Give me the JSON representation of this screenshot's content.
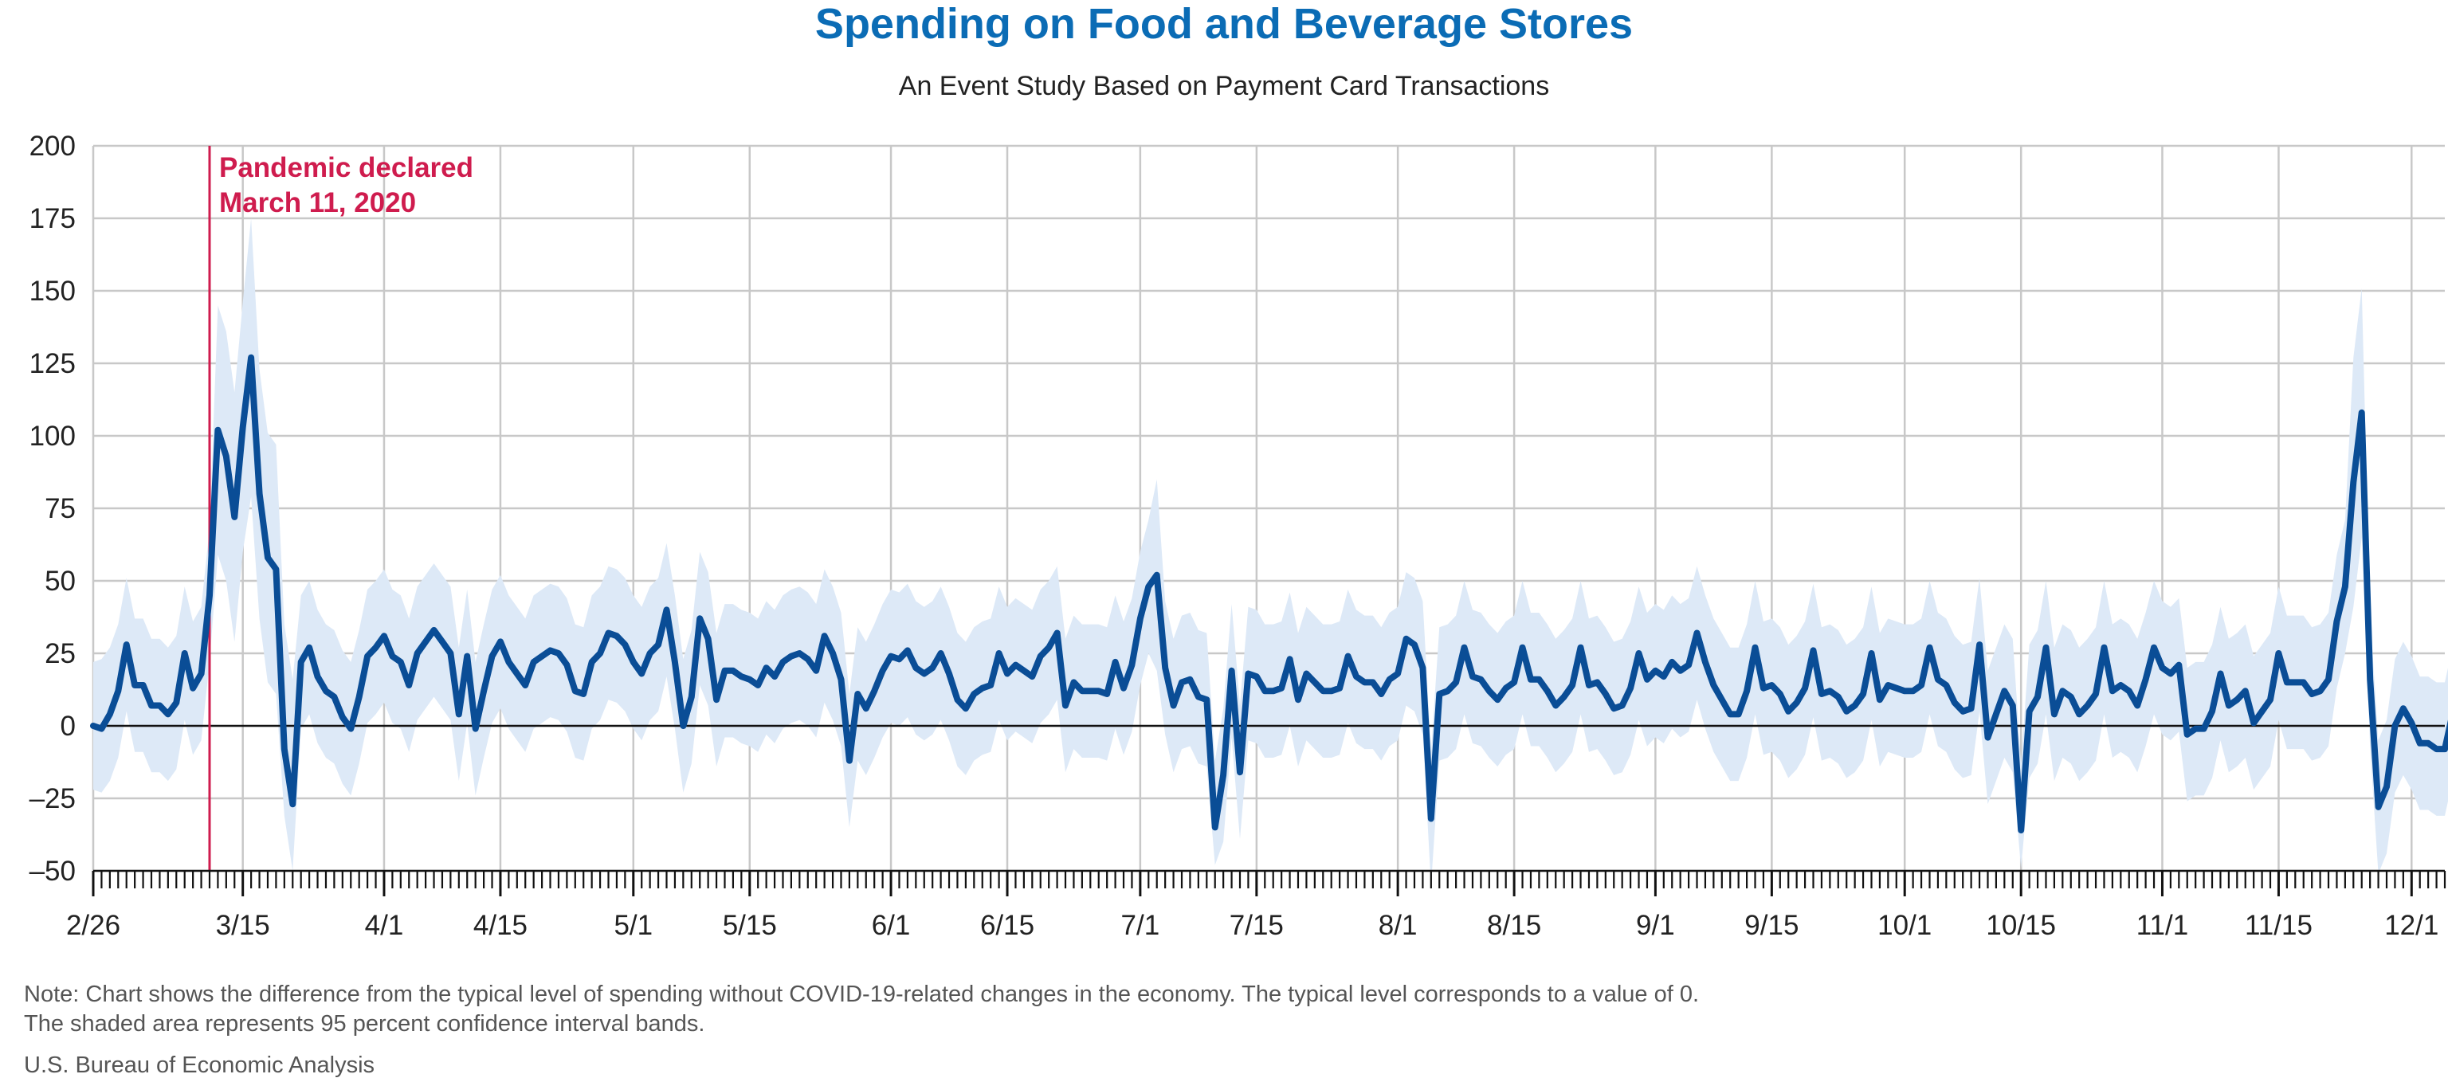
{
  "title": "Spending on Food and Beverage Stores",
  "subtitle": "An Event Study Based on Payment Card Transactions",
  "note_line1": "Note: Chart shows the difference from the typical level of spending without COVID-19-related changes in the economy. The typical level corresponds to a value of 0.",
  "note_line2": "The shaded area represents 95 percent confidence interval bands.",
  "source": "U.S. Bureau of Economic Analysis",
  "colors": {
    "title": "#0b6cb5",
    "line": "#0a4d96",
    "band": "#dde9f7",
    "event": "#cf1c4e",
    "grid": "#c8c8c8"
  },
  "chart_data": {
    "type": "line",
    "title": "Spending on Food and Beverage Stores",
    "subtitle": "An Event Study Based on Payment Card Transactions",
    "xlabel": "",
    "ylabel": "",
    "ylim": [
      -50,
      200
    ],
    "yticks": [
      200,
      175,
      150,
      125,
      100,
      75,
      50,
      25,
      0,
      -25,
      -50
    ],
    "xtick_labels": [
      {
        "label": "2/26",
        "date": "2020-02-26"
      },
      {
        "label": "3/15",
        "date": "2020-03-15"
      },
      {
        "label": "4/1",
        "date": "2020-04-01"
      },
      {
        "label": "4/15",
        "date": "2020-04-15"
      },
      {
        "label": "5/1",
        "date": "2020-05-01"
      },
      {
        "label": "5/15",
        "date": "2020-05-15"
      },
      {
        "label": "6/1",
        "date": "2020-06-01"
      },
      {
        "label": "6/15",
        "date": "2020-06-15"
      },
      {
        "label": "7/1",
        "date": "2020-07-01"
      },
      {
        "label": "7/15",
        "date": "2020-07-15"
      },
      {
        "label": "8/1",
        "date": "2020-08-01"
      },
      {
        "label": "8/15",
        "date": "2020-08-15"
      },
      {
        "label": "9/1",
        "date": "2020-09-01"
      },
      {
        "label": "9/15",
        "date": "2020-09-15"
      },
      {
        "label": "10/1",
        "date": "2020-10-01"
      },
      {
        "label": "10/15",
        "date": "2020-10-15"
      },
      {
        "label": "11/1",
        "date": "2020-11-01"
      },
      {
        "label": "11/15",
        "date": "2020-11-15"
      },
      {
        "label": "12/1",
        "date": "2020-12-01"
      }
    ],
    "x_start": "2020-02-26",
    "x_end": "2020-12-05",
    "grid": true,
    "event": {
      "date": "2020-03-11",
      "label_line1": "Pandemic declared",
      "label_line2": "March 11, 2020"
    },
    "series": [
      {
        "kind": "estimate",
        "values": [
          0,
          -1,
          4,
          12,
          28,
          14,
          14,
          7,
          7,
          4,
          8,
          25,
          13,
          18,
          45,
          102,
          93,
          72,
          103,
          127,
          80,
          58,
          54,
          -8,
          -27,
          22,
          27,
          17,
          12,
          10,
          3,
          -1,
          10,
          24,
          27,
          31,
          24,
          22,
          14,
          25,
          29,
          33,
          29,
          25,
          4,
          24,
          -1,
          12,
          24,
          29,
          22,
          18,
          14,
          22,
          24,
          26,
          25,
          21,
          12,
          11,
          22,
          25,
          32,
          31,
          28,
          22,
          18,
          25,
          28,
          40,
          22,
          0,
          10,
          37,
          30,
          9,
          19,
          19,
          17,
          16,
          14,
          20,
          17,
          22,
          24,
          25,
          23,
          19,
          31,
          25,
          16,
          -12,
          11,
          6,
          12,
          19,
          24,
          23,
          26,
          20,
          18,
          20,
          25,
          18,
          9,
          6,
          11,
          13,
          14,
          25,
          18,
          21,
          19,
          17,
          24,
          27,
          32,
          7,
          15,
          12,
          12,
          12,
          11,
          22,
          13,
          21,
          37,
          48,
          52,
          20,
          7,
          15,
          16,
          10,
          9,
          -35,
          -17,
          19,
          -16,
          18,
          17,
          12,
          12,
          13,
          23,
          9,
          18,
          15,
          12,
          12,
          13,
          24,
          17,
          15,
          15,
          11,
          16,
          18,
          30,
          28,
          20,
          -32,
          11,
          12,
          15,
          27,
          17,
          16,
          12,
          9,
          13,
          15,
          27,
          16,
          16,
          12,
          7,
          10,
          14,
          27,
          14,
          15,
          11,
          6,
          7,
          13,
          25,
          16,
          19,
          17,
          22,
          19,
          21,
          32,
          22,
          14,
          9,
          4,
          4,
          12,
          27,
          13,
          14,
          11,
          5,
          8,
          13,
          26,
          11,
          12,
          10,
          5,
          7,
          11,
          25,
          9,
          14,
          13,
          12,
          12,
          14,
          27,
          16,
          14,
          8,
          5,
          6,
          28,
          -4,
          4,
          12,
          7,
          -36,
          5,
          10,
          27,
          4,
          12,
          10,
          4,
          7,
          11,
          27,
          12,
          14,
          12,
          7,
          16,
          27,
          20,
          18,
          21,
          -3,
          -1,
          -1,
          5,
          18,
          7,
          9,
          12,
          1,
          5,
          9,
          25,
          15,
          15,
          15,
          11,
          12,
          16,
          36,
          48,
          84,
          108,
          16,
          -28,
          -21,
          0,
          6,
          1,
          -6,
          -6,
          -8,
          -8,
          5
        ]
      },
      {
        "kind": "ci_upper",
        "values": [
          22,
          23,
          27,
          35,
          51,
          37,
          37,
          30,
          30,
          27,
          31,
          48,
          36,
          41,
          68,
          145,
          136,
          115,
          146,
          175,
          123,
          101,
          97,
          35,
          16,
          45,
          50,
          40,
          35,
          33,
          26,
          22,
          33,
          47,
          50,
          54,
          47,
          45,
          37,
          48,
          52,
          56,
          52,
          48,
          27,
          47,
          22,
          35,
          47,
          52,
          45,
          41,
          37,
          45,
          47,
          49,
          48,
          44,
          35,
          34,
          45,
          48,
          55,
          54,
          51,
          45,
          41,
          48,
          51,
          63,
          45,
          23,
          33,
          60,
          53,
          32,
          42,
          42,
          40,
          39,
          37,
          43,
          40,
          45,
          47,
          48,
          46,
          42,
          54,
          48,
          39,
          11,
          34,
          29,
          35,
          42,
          47,
          46,
          49,
          43,
          41,
          43,
          48,
          41,
          32,
          29,
          34,
          36,
          37,
          48,
          41,
          44,
          42,
          40,
          47,
          50,
          55,
          30,
          38,
          35,
          35,
          35,
          34,
          45,
          36,
          44,
          60,
          71,
          85,
          43,
          30,
          38,
          39,
          33,
          32,
          -12,
          6,
          42,
          7,
          41,
          40,
          35,
          35,
          36,
          46,
          32,
          41,
          38,
          35,
          35,
          36,
          47,
          40,
          38,
          38,
          34,
          39,
          41,
          53,
          51,
          43,
          -9,
          34,
          35,
          38,
          50,
          40,
          39,
          35,
          32,
          36,
          38,
          50,
          39,
          39,
          35,
          30,
          33,
          37,
          50,
          37,
          38,
          34,
          29,
          30,
          36,
          48,
          39,
          42,
          40,
          45,
          42,
          44,
          55,
          45,
          37,
          32,
          27,
          27,
          35,
          50,
          36,
          37,
          34,
          28,
          31,
          36,
          49,
          34,
          35,
          33,
          28,
          30,
          34,
          48,
          32,
          37,
          36,
          35,
          35,
          37,
          50,
          39,
          37,
          31,
          28,
          29,
          51,
          19,
          27,
          35,
          30,
          -13,
          28,
          33,
          50,
          27,
          35,
          33,
          27,
          30,
          34,
          50,
          35,
          37,
          35,
          30,
          39,
          50,
          43,
          41,
          44,
          20,
          22,
          22,
          28,
          41,
          30,
          32,
          35,
          24,
          28,
          32,
          48,
          38,
          38,
          38,
          34,
          35,
          39,
          59,
          71,
          127,
          151,
          39,
          -5,
          2,
          23,
          29,
          24,
          17,
          17,
          15,
          15,
          28
        ]
      },
      {
        "kind": "ci_lower",
        "values": [
          -22,
          -23,
          -19,
          -11,
          5,
          -9,
          -9,
          -16,
          -16,
          -19,
          -15,
          2,
          -10,
          -5,
          22,
          59,
          50,
          29,
          60,
          79,
          37,
          15,
          11,
          -31,
          -50,
          -1,
          4,
          -6,
          -11,
          -13,
          -20,
          -24,
          -13,
          1,
          4,
          8,
          1,
          -1,
          -9,
          2,
          6,
          10,
          6,
          2,
          -19,
          1,
          -24,
          -11,
          1,
          6,
          -1,
          -5,
          -9,
          -1,
          1,
          3,
          2,
          -2,
          -11,
          -12,
          -1,
          2,
          9,
          8,
          5,
          -1,
          -5,
          2,
          5,
          17,
          -1,
          -23,
          -13,
          14,
          7,
          -14,
          -4,
          -4,
          -6,
          -7,
          -9,
          -3,
          -6,
          -1,
          1,
          2,
          0,
          -4,
          8,
          2,
          -7,
          -35,
          -12,
          -17,
          -11,
          -4,
          1,
          0,
          3,
          -3,
          -5,
          -3,
          2,
          -5,
          -14,
          -17,
          -12,
          -10,
          -9,
          2,
          -5,
          -2,
          -4,
          -6,
          1,
          4,
          9,
          -16,
          -8,
          -11,
          -11,
          -11,
          -12,
          -1,
          -10,
          -2,
          14,
          25,
          19,
          -3,
          -16,
          -8,
          -7,
          -13,
          -14,
          -48,
          -40,
          -4,
          -39,
          -5,
          -6,
          -11,
          -11,
          -10,
          0,
          -14,
          -5,
          -8,
          -11,
          -11,
          -10,
          1,
          -6,
          -8,
          -8,
          -12,
          -7,
          -5,
          7,
          5,
          -3,
          -55,
          -12,
          -11,
          -8,
          4,
          -6,
          -7,
          -11,
          -14,
          -10,
          -8,
          4,
          -7,
          -7,
          -11,
          -16,
          -13,
          -9,
          4,
          -9,
          -8,
          -12,
          -17,
          -16,
          -10,
          2,
          -7,
          -4,
          -6,
          -1,
          -4,
          -2,
          9,
          -1,
          -9,
          -14,
          -19,
          -19,
          -11,
          4,
          -10,
          -9,
          -12,
          -18,
          -15,
          -10,
          3,
          -12,
          -11,
          -13,
          -18,
          -16,
          -12,
          2,
          -14,
          -9,
          -10,
          -11,
          -11,
          -9,
          4,
          -7,
          -9,
          -15,
          -18,
          -17,
          5,
          -27,
          -19,
          -11,
          -16,
          -49,
          -18,
          -13,
          4,
          -19,
          -11,
          -13,
          -19,
          -16,
          -12,
          4,
          -11,
          -9,
          -11,
          -16,
          -7,
          4,
          -3,
          -5,
          -2,
          -26,
          -24,
          -24,
          -18,
          -5,
          -16,
          -14,
          -11,
          -22,
          -18,
          -14,
          2,
          -8,
          -8,
          -8,
          -12,
          -11,
          -7,
          13,
          25,
          41,
          65,
          -7,
          -51,
          -44,
          -23,
          -17,
          -22,
          -29,
          -29,
          -31,
          -31,
          -18
        ]
      }
    ]
  }
}
